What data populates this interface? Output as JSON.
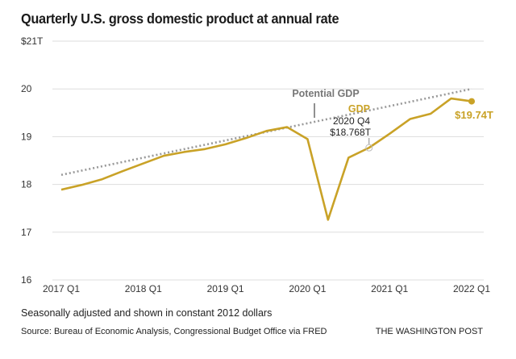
{
  "chart_data": {
    "type": "line",
    "title": "Quarterly U.S. gross domestic product at annual rate",
    "xlabel": "",
    "ylabel": "",
    "ylim": [
      16,
      21
    ],
    "yticks": [
      {
        "value": 21,
        "label": "$21T"
      },
      {
        "value": 20,
        "label": "20"
      },
      {
        "value": 19,
        "label": "19"
      },
      {
        "value": 18,
        "label": "18"
      },
      {
        "value": 17,
        "label": "17"
      },
      {
        "value": 16,
        "label": "16"
      }
    ],
    "xticks": [
      "2017 Q1",
      "2018 Q1",
      "2019 Q1",
      "2020 Q1",
      "2021 Q1",
      "2022 Q1"
    ],
    "x": [
      "2017 Q1",
      "2017 Q2",
      "2017 Q3",
      "2017 Q4",
      "2018 Q1",
      "2018 Q2",
      "2018 Q3",
      "2018 Q4",
      "2019 Q1",
      "2019 Q2",
      "2019 Q3",
      "2019 Q4",
      "2020 Q1",
      "2020 Q2",
      "2020 Q3",
      "2020 Q4",
      "2021 Q1",
      "2021 Q2",
      "2021 Q3",
      "2021 Q4",
      "2022 Q1"
    ],
    "grid": true,
    "series": [
      {
        "name": "GDP",
        "color": "#c9a227",
        "style": "solid",
        "values": [
          17.89,
          17.99,
          18.11,
          18.28,
          18.44,
          18.6,
          18.68,
          18.74,
          18.84,
          18.97,
          19.12,
          19.2,
          18.95,
          17.26,
          18.56,
          18.768,
          19.06,
          19.37,
          19.48,
          19.8,
          19.74
        ]
      },
      {
        "name": "Potential GDP",
        "color": "#999999",
        "style": "dotted",
        "values": [
          18.2,
          18.29,
          18.38,
          18.47,
          18.56,
          18.65,
          18.74,
          18.83,
          18.92,
          19.01,
          19.1,
          19.19,
          19.28,
          19.37,
          19.46,
          19.55,
          19.64,
          19.73,
          19.82,
          19.91,
          20.0
        ]
      }
    ],
    "annotations": {
      "potential_label": "Potential GDP",
      "gdp_label": "GDP",
      "callout_period": "2020 Q4",
      "callout_value": "$18.768T",
      "end_value_label": "$19.74T"
    }
  },
  "footer": {
    "note": "Seasonally adjusted and shown in constant 2012 dollars",
    "source": "Source: Bureau of Economic Analysis, Congressional Budget Office via FRED",
    "credit": "THE WASHINGTON POST"
  }
}
